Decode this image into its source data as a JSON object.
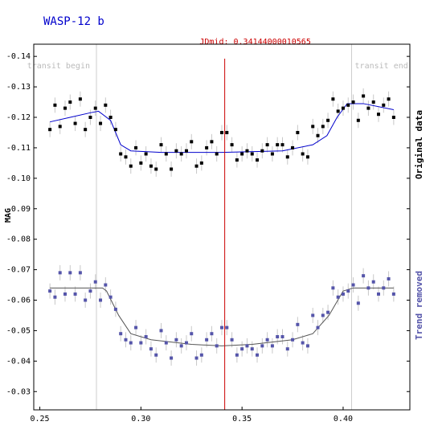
{
  "chart_data": {
    "type": "scatter",
    "title": "WASP-12 b",
    "y_label": "MAG",
    "xlim": [
      0.247,
      0.433
    ],
    "ylim": [
      -0.144,
      -0.024
    ],
    "y_inverted": true,
    "xticks": [
      0.25,
      {
        "value": 0.3,
        "label": "0.30"
      },
      0.35,
      {
        "value": 0.4,
        "label": "0.40"
      }
    ],
    "yticks": [
      -0.14,
      -0.13,
      -0.12,
      -0.11,
      {
        "value": -0.1,
        "label": "-0.10"
      },
      -0.09,
      -0.08,
      -0.07,
      -0.06,
      -0.05,
      -0.04,
      -0.03
    ],
    "grid": false,
    "legend": "right",
    "x": [
      0.255,
      0.2575,
      0.26,
      0.2625,
      0.265,
      0.2675,
      0.27,
      0.2725,
      0.275,
      0.2775,
      0.28,
      0.2825,
      0.285,
      0.2875,
      0.29,
      0.2925,
      0.295,
      0.2975,
      0.3,
      0.3025,
      0.305,
      0.3075,
      0.31,
      0.3125,
      0.315,
      0.3175,
      0.32,
      0.3225,
      0.325,
      0.3275,
      0.33,
      0.3325,
      0.335,
      0.3375,
      0.34,
      0.3425,
      0.345,
      0.3475,
      0.35,
      0.3525,
      0.355,
      0.3575,
      0.36,
      0.3625,
      0.365,
      0.3675,
      0.37,
      0.3725,
      0.375,
      0.3775,
      0.38,
      0.3825,
      0.385,
      0.3875,
      0.39,
      0.3925,
      0.395,
      0.3975,
      0.4,
      0.4025,
      0.405,
      0.4075,
      0.41,
      0.4125,
      0.415,
      0.4175,
      0.42,
      0.4225,
      0.425
    ],
    "series": [
      {
        "name": "Original data",
        "color": "#000000",
        "error": 0.0025,
        "values": [
          -0.116,
          -0.124,
          -0.117,
          -0.123,
          -0.125,
          -0.118,
          -0.126,
          -0.116,
          -0.12,
          -0.123,
          -0.118,
          -0.124,
          -0.12,
          -0.116,
          -0.108,
          -0.107,
          -0.104,
          -0.11,
          -0.105,
          -0.108,
          -0.104,
          -0.103,
          -0.111,
          -0.108,
          -0.103,
          -0.109,
          -0.108,
          -0.109,
          -0.112,
          -0.104,
          -0.105,
          -0.11,
          -0.112,
          -0.108,
          -0.115,
          -0.115,
          -0.111,
          -0.106,
          -0.108,
          -0.109,
          -0.108,
          -0.106,
          -0.109,
          -0.111,
          -0.108,
          -0.111,
          -0.111,
          -0.107,
          -0.11,
          -0.115,
          -0.108,
          -0.107,
          -0.117,
          -0.114,
          -0.117,
          -0.119,
          -0.126,
          -0.122,
          -0.123,
          -0.124,
          -0.125,
          -0.119,
          -0.127,
          -0.123,
          -0.125,
          -0.121,
          -0.124,
          -0.126,
          -0.12
        ]
      },
      {
        "name": "Trend removed",
        "color": "#5555aa",
        "error": 0.0025,
        "values": [
          -0.063,
          -0.061,
          -0.069,
          -0.062,
          -0.069,
          -0.062,
          -0.069,
          -0.06,
          -0.063,
          -0.066,
          -0.06,
          -0.065,
          -0.061,
          -0.057,
          -0.049,
          -0.047,
          -0.046,
          -0.051,
          -0.046,
          -0.048,
          -0.044,
          -0.042,
          -0.05,
          -0.046,
          -0.041,
          -0.047,
          -0.045,
          -0.046,
          -0.049,
          -0.041,
          -0.042,
          -0.047,
          -0.049,
          -0.045,
          -0.051,
          -0.051,
          -0.047,
          -0.042,
          -0.044,
          -0.045,
          -0.044,
          -0.042,
          -0.045,
          -0.047,
          -0.045,
          -0.048,
          -0.048,
          -0.044,
          -0.047,
          -0.052,
          -0.046,
          -0.045,
          -0.055,
          -0.051,
          -0.055,
          -0.056,
          -0.064,
          -0.061,
          -0.062,
          -0.063,
          -0.065,
          -0.059,
          -0.068,
          -0.064,
          -0.066,
          -0.062,
          -0.064,
          -0.067,
          -0.062
        ]
      }
    ],
    "fits": [
      {
        "color": "#0000cc",
        "x": [
          0.255,
          0.265,
          0.275,
          0.279,
          0.285,
          0.29,
          0.295,
          0.31,
          0.34,
          0.37,
          0.385,
          0.392,
          0.397,
          0.402,
          0.41,
          0.425
        ],
        "values": [
          -0.1185,
          -0.12,
          -0.1215,
          -0.122,
          -0.119,
          -0.111,
          -0.109,
          -0.1085,
          -0.1085,
          -0.109,
          -0.111,
          -0.114,
          -0.12,
          -0.1245,
          -0.1245,
          -0.1225
        ]
      },
      {
        "color": "#555555",
        "x": [
          0.255,
          0.281,
          0.283,
          0.289,
          0.295,
          0.305,
          0.325,
          0.34,
          0.355,
          0.375,
          0.385,
          0.393,
          0.4,
          0.405,
          0.425
        ],
        "values": [
          -0.064,
          -0.064,
          -0.063,
          -0.055,
          -0.049,
          -0.047,
          -0.0455,
          -0.045,
          -0.0455,
          -0.047,
          -0.049,
          -0.055,
          -0.063,
          -0.064,
          -0.064
        ]
      }
    ],
    "annotations": {
      "transit_begin": {
        "label": "transit begin",
        "x": 0.278
      },
      "transit_end": {
        "label": "transit end",
        "x": 0.4042
      },
      "jdmid": {
        "label": "JDmid: 0.34144000010565",
        "x": 0.34144000010565
      }
    }
  }
}
